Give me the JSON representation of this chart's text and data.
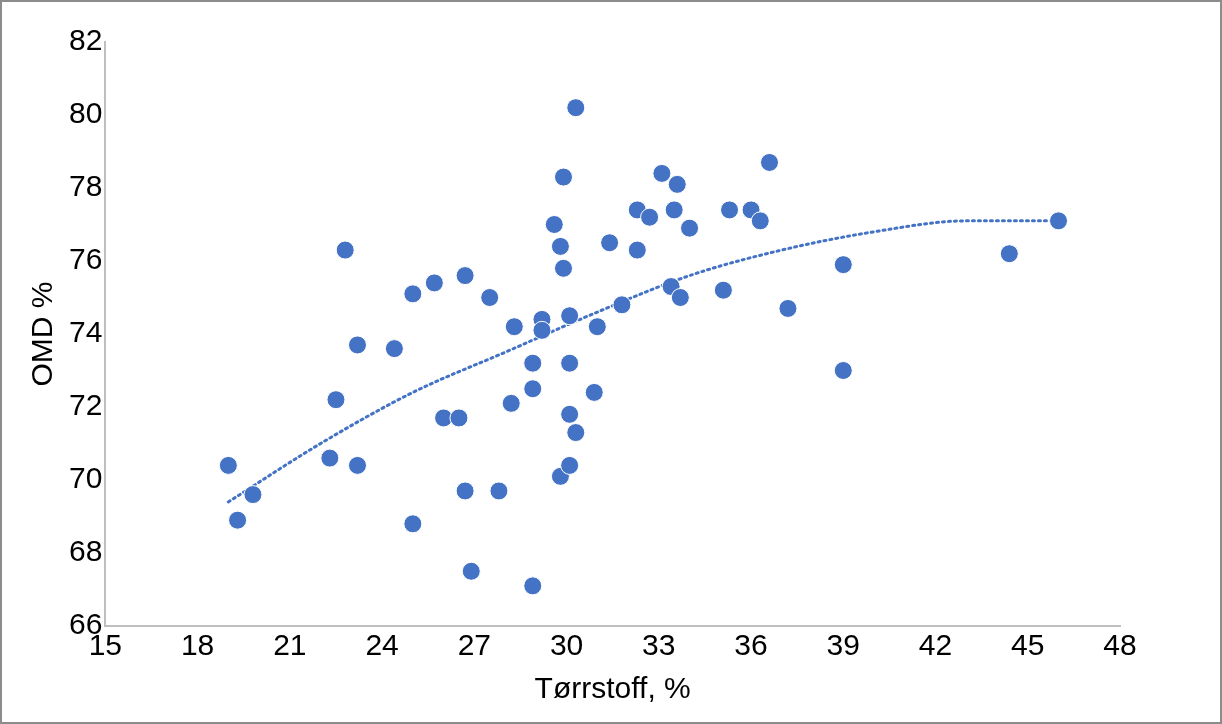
{
  "chart_data": {
    "type": "scatter",
    "xlabel": "Tørrstoff, %",
    "ylabel": "OMD %",
    "xlim": [
      15,
      48
    ],
    "xticks": [
      15,
      18,
      21,
      24,
      27,
      30,
      33,
      36,
      39,
      42,
      45,
      48
    ],
    "ylim": [
      66,
      82
    ],
    "yticks": [
      66,
      68,
      70,
      72,
      74,
      76,
      78,
      80,
      82
    ],
    "grid": false,
    "legend": false,
    "marker": "circle",
    "series": [
      {
        "color": "#4472c4",
        "x": [
          19.0,
          19.3,
          19.8,
          22.8,
          22.5,
          22.3,
          23.2,
          23.2,
          24.4,
          25.0,
          25.0,
          25.7,
          26.0,
          26.5,
          26.7,
          26.7,
          26.9,
          27.5,
          27.8,
          28.2,
          28.3,
          28.9,
          28.9,
          28.9,
          29.2,
          29.2,
          29.6,
          29.8,
          29.9,
          29.9,
          29.8,
          30.1,
          30.1,
          30.1,
          30.1,
          30.3,
          30.3,
          30.9,
          31.0,
          31.4,
          31.8,
          32.3,
          32.3,
          32.7,
          33.1,
          33.5,
          33.4,
          33.7,
          33.6,
          34.0,
          35.1,
          35.3,
          36.0,
          36.3,
          36.6,
          37.2,
          39.0,
          39.0,
          44.4,
          46.0
        ],
        "values": [
          70.4,
          68.9,
          69.6,
          76.3,
          72.2,
          70.6,
          73.7,
          70.4,
          73.6,
          75.1,
          68.8,
          75.4,
          71.7,
          71.7,
          75.6,
          69.7,
          67.5,
          75.0,
          69.7,
          72.1,
          74.2,
          73.2,
          72.5,
          67.1,
          74.4,
          74.1,
          77.0,
          76.4,
          78.3,
          75.8,
          70.1,
          70.4,
          74.5,
          73.2,
          71.8,
          71.3,
          80.2,
          72.4,
          74.2,
          76.5,
          74.8,
          76.3,
          77.4,
          77.2,
          78.4,
          77.4,
          75.3,
          75.0,
          78.1,
          76.9,
          75.2,
          77.4,
          77.4,
          77.1,
          78.7,
          74.7,
          75.9,
          73.0,
          76.2,
          77.1
        ]
      },
      {
        "type": "line",
        "color": "#4472c4",
        "marker": "none",
        "line_style": "dotted",
        "x": [
          19,
          22,
          25,
          28,
          31,
          34,
          37,
          40,
          43,
          46
        ],
        "values": [
          69.4,
          71.0,
          72.4,
          73.5,
          74.6,
          75.6,
          76.3,
          76.8,
          77.1,
          77.1
        ]
      }
    ]
  }
}
